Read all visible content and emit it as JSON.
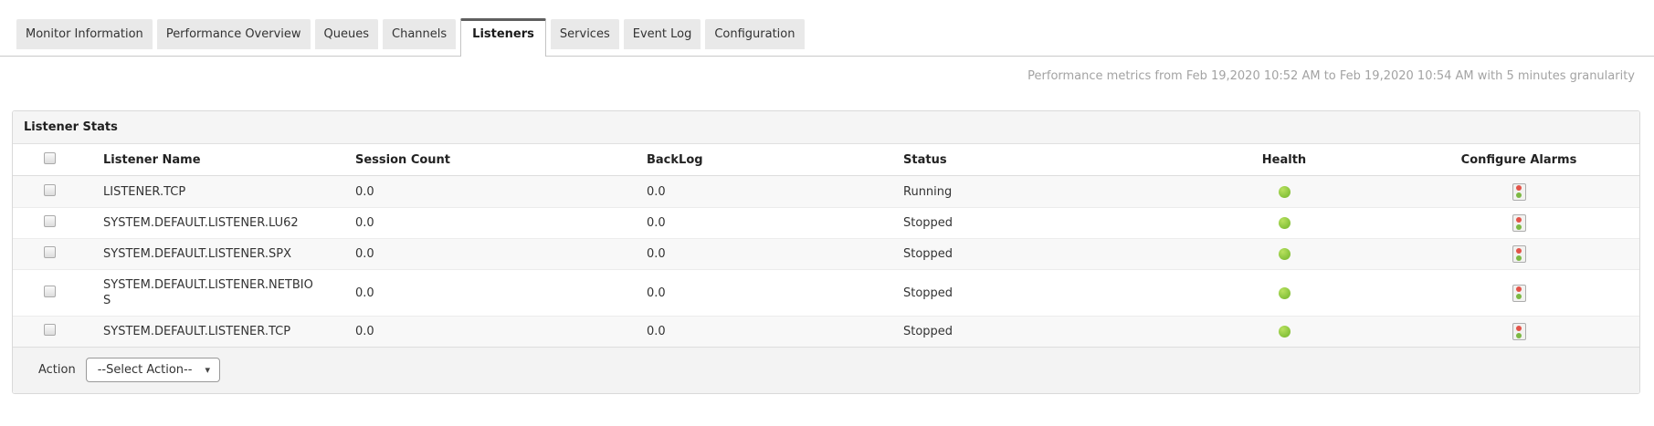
{
  "tabs": [
    {
      "label": "Monitor Information",
      "active": false
    },
    {
      "label": "Performance Overview",
      "active": false
    },
    {
      "label": "Queues",
      "active": false
    },
    {
      "label": "Channels",
      "active": false
    },
    {
      "label": "Listeners",
      "active": true
    },
    {
      "label": "Services",
      "active": false
    },
    {
      "label": "Event Log",
      "active": false
    },
    {
      "label": "Configuration",
      "active": false
    }
  ],
  "metrics_note": "Performance metrics from Feb 19,2020 10:52 AM to Feb 19,2020 10:54 AM with 5 minutes granularity",
  "panel": {
    "title": "Listener Stats"
  },
  "table": {
    "headers": {
      "name": "Listener Name",
      "session": "Session Count",
      "backlog": "BackLog",
      "status": "Status",
      "health": "Health",
      "configure": "Configure Alarms"
    },
    "rows": [
      {
        "name": "LISTENER.TCP",
        "session": "0.0",
        "backlog": "0.0",
        "status": "Running",
        "health": "up"
      },
      {
        "name": "SYSTEM.DEFAULT.LISTENER.LU62",
        "session": "0.0",
        "backlog": "0.0",
        "status": "Stopped",
        "health": "up"
      },
      {
        "name": "SYSTEM.DEFAULT.LISTENER.SPX",
        "session": "0.0",
        "backlog": "0.0",
        "status": "Stopped",
        "health": "up"
      },
      {
        "name": "SYSTEM.DEFAULT.LISTENER.NETBIOS",
        "session": "0.0",
        "backlog": "0.0",
        "status": "Stopped",
        "health": "up"
      },
      {
        "name": "SYSTEM.DEFAULT.LISTENER.TCP",
        "session": "0.0",
        "backlog": "0.0",
        "status": "Stopped",
        "health": "up"
      }
    ]
  },
  "footer": {
    "action_label": "Action",
    "select_action": "--Select Action--"
  },
  "icons": {
    "caret_down": "▾",
    "health_up": "green-dot",
    "configure_alarm": "red-green-traffic-light"
  },
  "colors": {
    "health_green": "#8cc63f",
    "alarm_red": "#e25349",
    "alarm_green": "#7cb843",
    "active_tab_top_border": "#5f5f5f",
    "panel_header_bg": "#f5f5f5"
  }
}
